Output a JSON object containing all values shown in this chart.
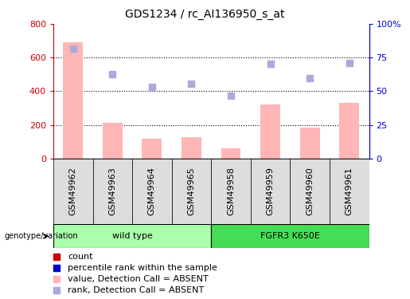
{
  "title": "GDS1234 / rc_AI136950_s_at",
  "samples": [
    "GSM49962",
    "GSM49963",
    "GSM49964",
    "GSM49965",
    "GSM49958",
    "GSM49959",
    "GSM49960",
    "GSM49961"
  ],
  "bar_values": [
    690,
    210,
    115,
    125,
    60,
    320,
    185,
    330
  ],
  "rank_values": [
    655,
    500,
    425,
    445,
    375,
    565,
    480,
    570
  ],
  "groups": [
    {
      "label": "wild type",
      "indices": [
        0,
        1,
        2,
        3
      ],
      "color": "#AAFFAA"
    },
    {
      "label": "FGFR3 K650E",
      "indices": [
        4,
        5,
        6,
        7
      ],
      "color": "#44DD55"
    }
  ],
  "bar_color": "#FFB6B6",
  "rank_color": "#AAAADD",
  "left_ylim": [
    0,
    800
  ],
  "right_ylim": [
    0,
    100
  ],
  "left_yticks": [
    0,
    200,
    400,
    600,
    800
  ],
  "right_yticks": [
    0,
    25,
    50,
    75,
    100
  ],
  "right_yticklabels": [
    "0",
    "25",
    "50",
    "75",
    "100%"
  ],
  "grid_values": [
    200,
    400,
    600
  ],
  "title_fontsize": 10,
  "tick_fontsize": 8,
  "label_fontsize": 8,
  "legend_fontsize": 8,
  "left_tick_color": "#CC0000",
  "right_tick_color": "#0000CC",
  "legend_items": [
    {
      "color": "#CC0000",
      "label": "count"
    },
    {
      "color": "#0000CC",
      "label": "percentile rank within the sample"
    },
    {
      "color": "#FFB6B6",
      "label": "value, Detection Call = ABSENT"
    },
    {
      "color": "#AAAADD",
      "label": "rank, Detection Call = ABSENT"
    }
  ]
}
